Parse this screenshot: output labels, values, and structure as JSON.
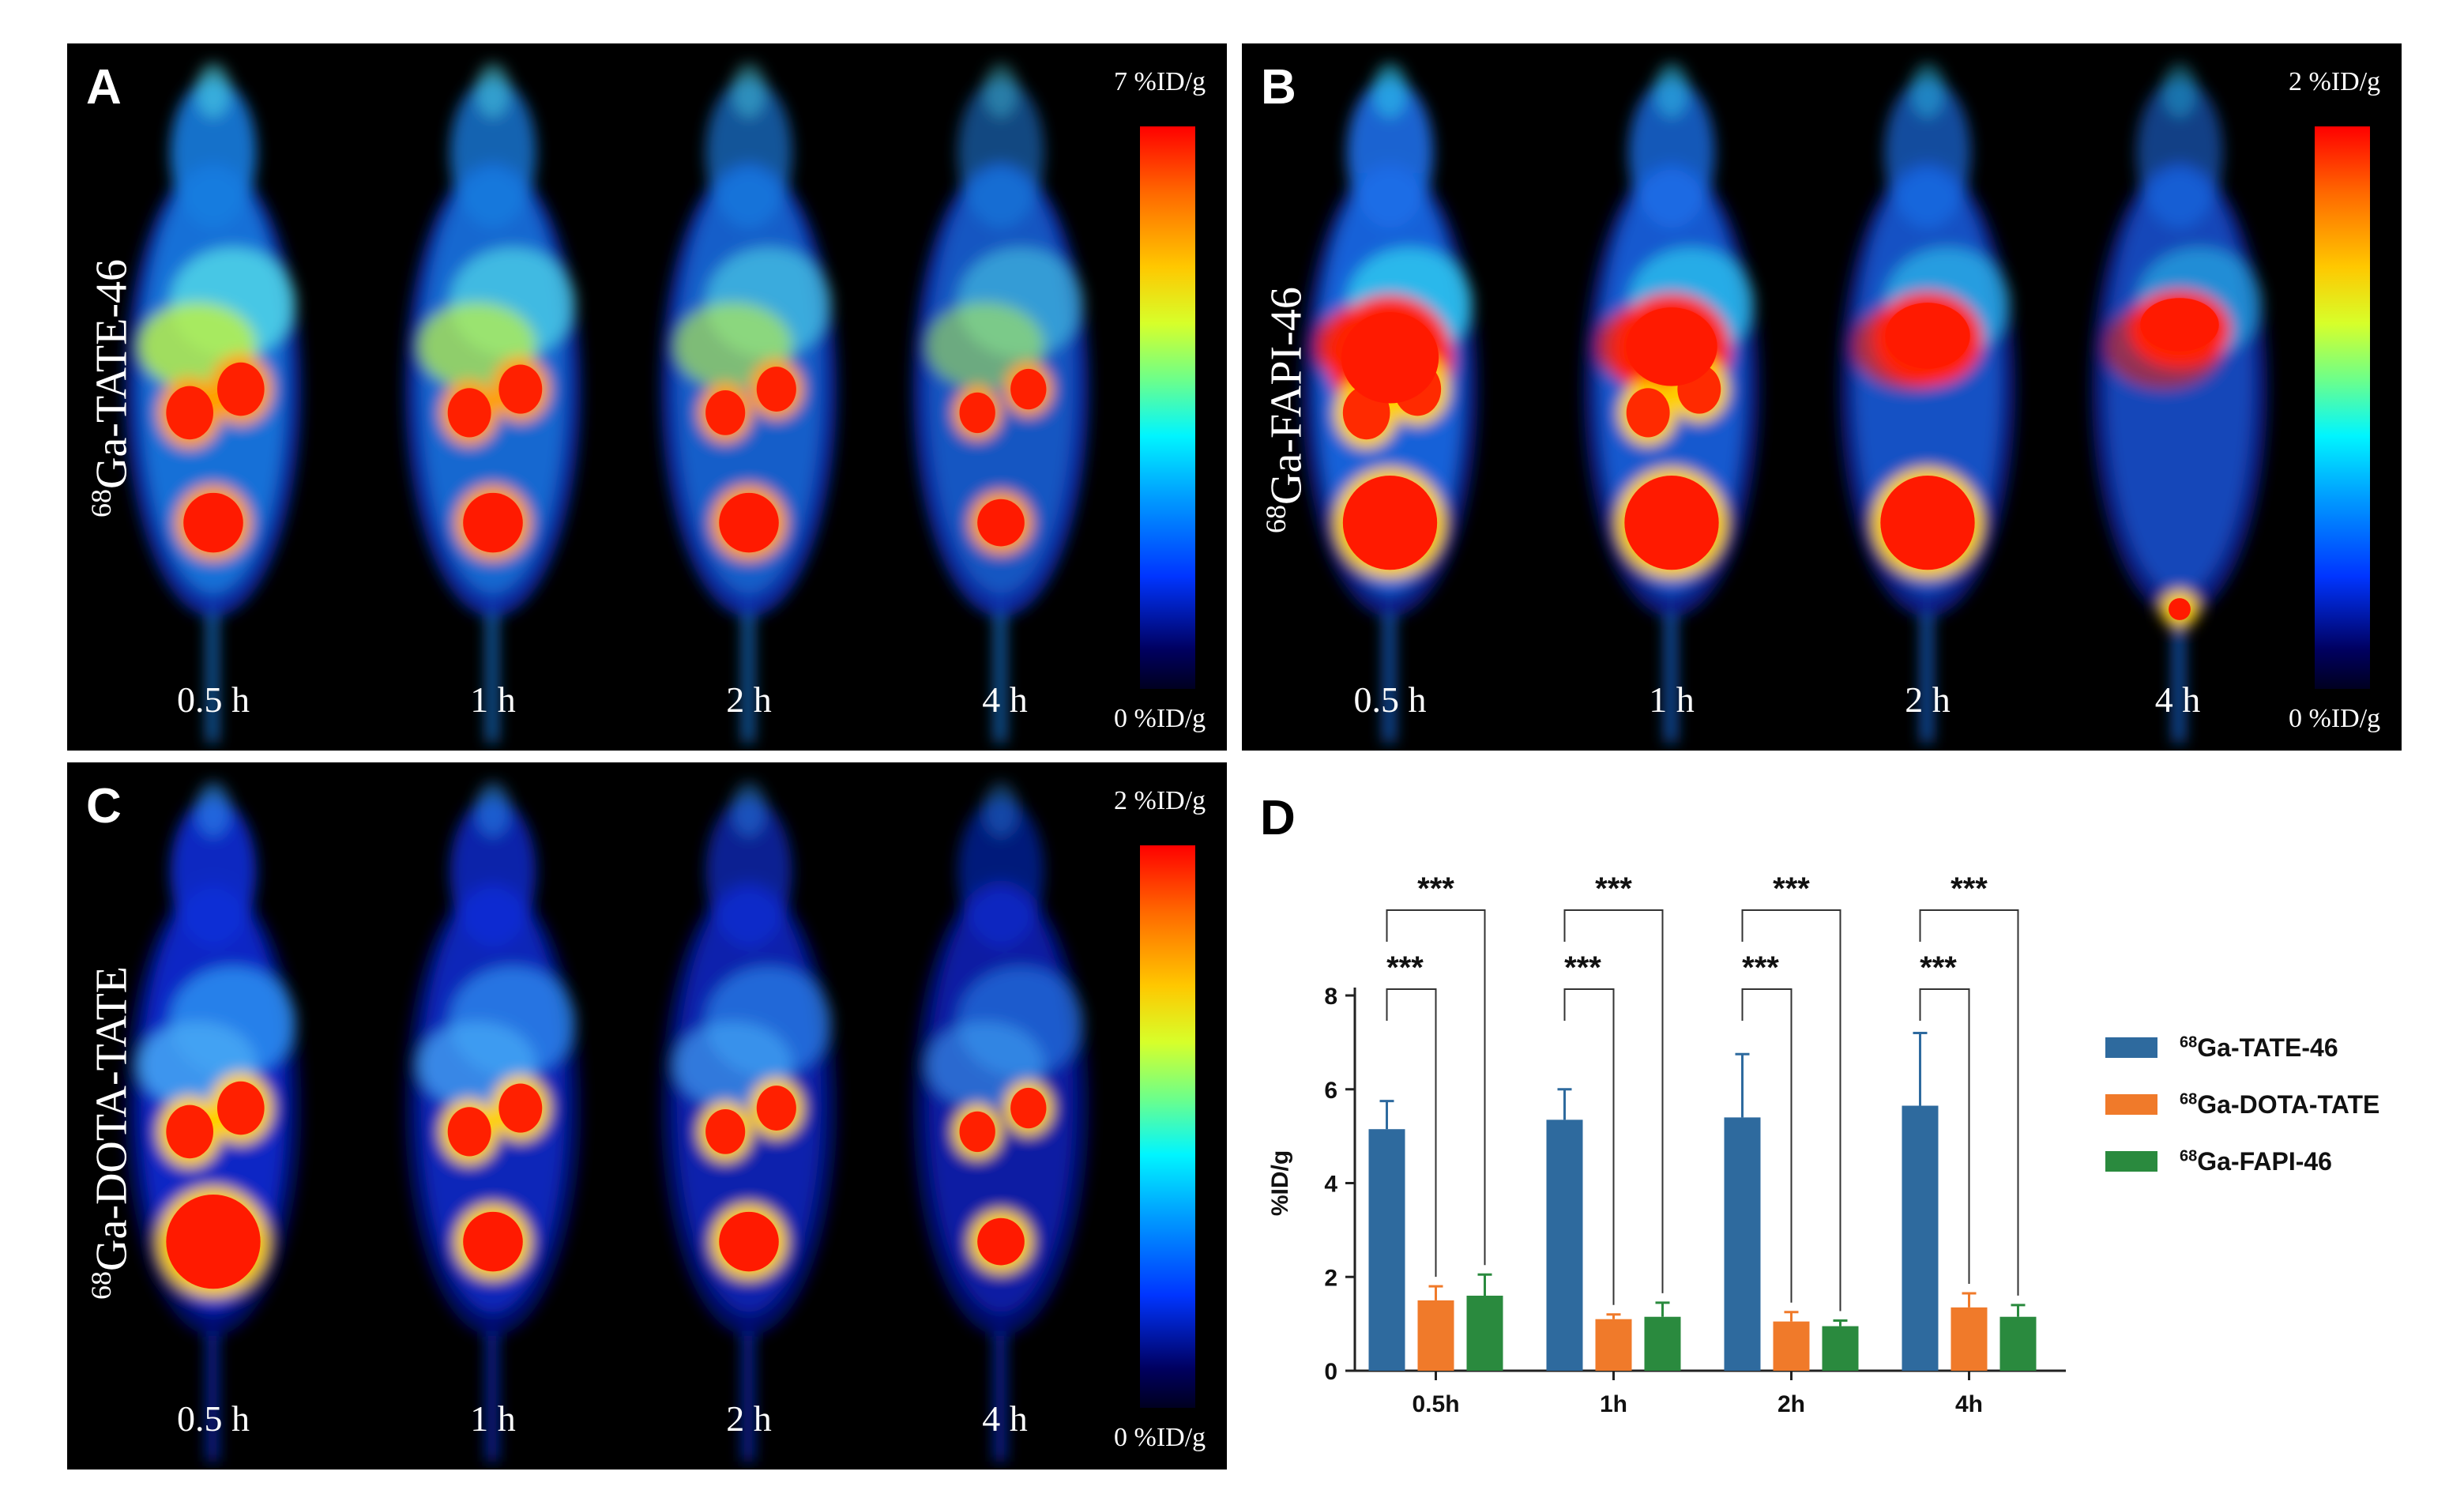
{
  "panels": {
    "A": {
      "letter": "A",
      "tracer_iso": "68",
      "tracer_name": "Ga-TATE-46",
      "scale_max": "7 %ID/g",
      "scale_min": "0 %ID/g",
      "times": [
        "0.5 h",
        "1 h",
        "2 h",
        "4 h"
      ]
    },
    "B": {
      "letter": "B",
      "tracer_iso": "68",
      "tracer_name": "Ga-FAPI-46",
      "scale_max": "2 %ID/g",
      "scale_min": "0 %ID/g",
      "times": [
        "0.5 h",
        "1 h",
        "2 h",
        "4 h"
      ]
    },
    "C": {
      "letter": "C",
      "tracer_iso": "68",
      "tracer_name": "Ga-DOTA-TATE",
      "scale_max": "2 %ID/g",
      "scale_min": "0 %ID/g",
      "times": [
        "0.5 h",
        "1 h",
        "2 h",
        "4 h"
      ]
    }
  },
  "chart_data": {
    "panel_letter": "D",
    "type": "bar",
    "categories": [
      "0.5h",
      "1h",
      "2h",
      "4h"
    ],
    "ylabel": "%ID/g",
    "ylim": [
      0,
      8
    ],
    "yticks": [
      0,
      2,
      4,
      6,
      8
    ],
    "series": [
      {
        "name_iso": "68",
        "name": "Ga-TATE-46",
        "color": "#2e6a9e",
        "values": [
          5.15,
          5.35,
          5.4,
          5.65
        ],
        "errors": [
          0.6,
          0.65,
          1.35,
          1.55
        ]
      },
      {
        "name_iso": "68",
        "name": "Ga-DOTA-TATE",
        "color": "#f07a2a",
        "values": [
          1.5,
          1.1,
          1.05,
          1.35
        ],
        "errors": [
          0.3,
          0.1,
          0.2,
          0.3
        ]
      },
      {
        "name_iso": "68",
        "name": "Ga-FAPI-46",
        "color": "#2a8a3e",
        "values": [
          1.6,
          1.15,
          0.95,
          1.15
        ],
        "errors": [
          0.45,
          0.3,
          0.12,
          0.25
        ]
      }
    ],
    "significance": [
      {
        "label": "***",
        "from_series": 0,
        "to_series": 1
      },
      {
        "label": "***",
        "from_series": 0,
        "to_series": 2
      }
    ]
  }
}
